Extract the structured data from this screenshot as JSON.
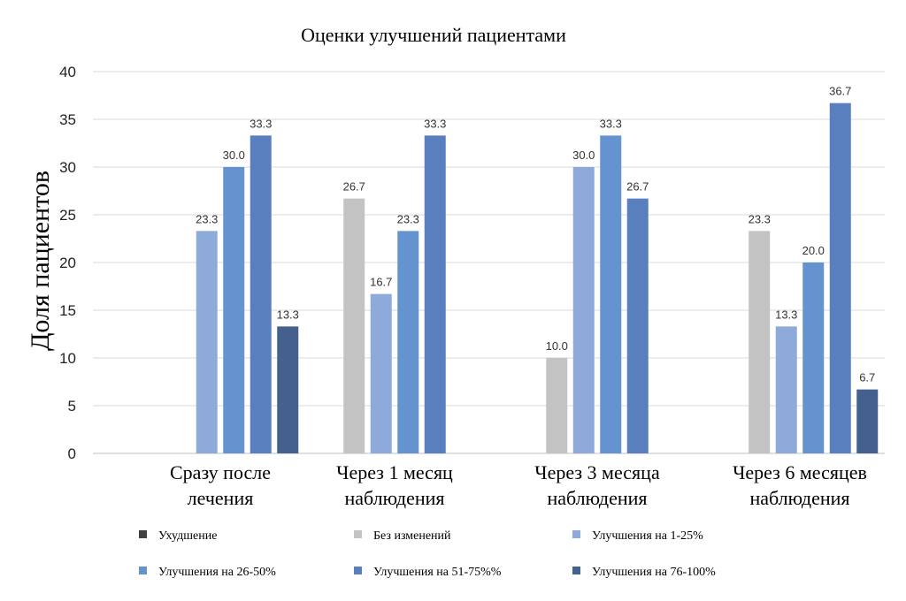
{
  "chart_data": {
    "type": "bar",
    "title": "Оценки улучшений пациентами",
    "ylabel": "Доля пациентов",
    "xlabel": "",
    "ylim": [
      0,
      40
    ],
    "yticks": [
      0,
      5,
      10,
      15,
      20,
      25,
      30,
      35,
      40
    ],
    "grid": true,
    "legend_position": "bottom",
    "categories": [
      [
        "Сразу после",
        "лечения"
      ],
      [
        "Через 1 месяц",
        "наблюдения"
      ],
      [
        "Через 3 месяца",
        "наблюдения"
      ],
      [
        "Через 6 месяцев",
        "наблюдения"
      ]
    ],
    "series": [
      {
        "name": "Ухудшение",
        "color": "#404040",
        "values": [
          0,
          0,
          0,
          0
        ]
      },
      {
        "name": "Без изменений",
        "color": "#c3c3c3",
        "values": [
          0,
          26.7,
          10.0,
          23.3
        ]
      },
      {
        "name": "Улучшения на 1-25%",
        "color": "#8eaadb",
        "values": [
          23.3,
          16.7,
          30.0,
          13.3
        ]
      },
      {
        "name": "Улучшения на 26-50%",
        "color": "#6593cf",
        "values": [
          30.0,
          23.3,
          33.3,
          20.0
        ]
      },
      {
        "name": "Улучшения на 51-75%%",
        "color": "#5a7fbf",
        "values": [
          33.3,
          33.3,
          26.7,
          36.7
        ]
      },
      {
        "name": "Улучшения на 76-100%",
        "color": "#44618e",
        "values": [
          13.3,
          null,
          null,
          6.7
        ]
      }
    ]
  }
}
